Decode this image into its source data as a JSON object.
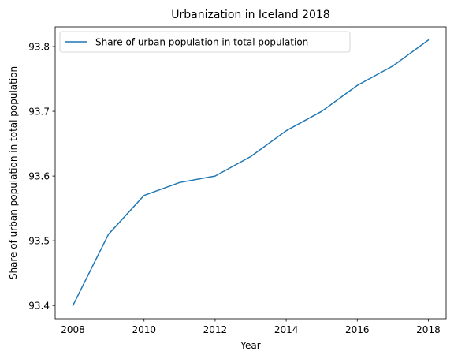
{
  "chart_data": {
    "type": "line",
    "title": "Urbanization in Iceland 2018",
    "xlabel": "Year",
    "ylabel": "Share of urban population in total population",
    "x": [
      2008,
      2009,
      2010,
      2011,
      2012,
      2013,
      2014,
      2015,
      2016,
      2017,
      2018
    ],
    "series": [
      {
        "name": "Share of urban population in total population",
        "color": "#1f77b4",
        "values": [
          93.4,
          93.51,
          93.57,
          93.59,
          93.6,
          93.63,
          93.67,
          93.7,
          93.74,
          93.77,
          93.81
        ]
      }
    ],
    "xlim": [
      2007.5,
      2018.5
    ],
    "ylim": [
      93.3795,
      93.8305
    ],
    "xticks": [
      "2008",
      "2010",
      "2012",
      "2014",
      "2016",
      "2018"
    ],
    "yticks": [
      "93.4",
      "93.5",
      "93.6",
      "93.7",
      "93.8"
    ],
    "grid": false,
    "legend": "upper left"
  }
}
